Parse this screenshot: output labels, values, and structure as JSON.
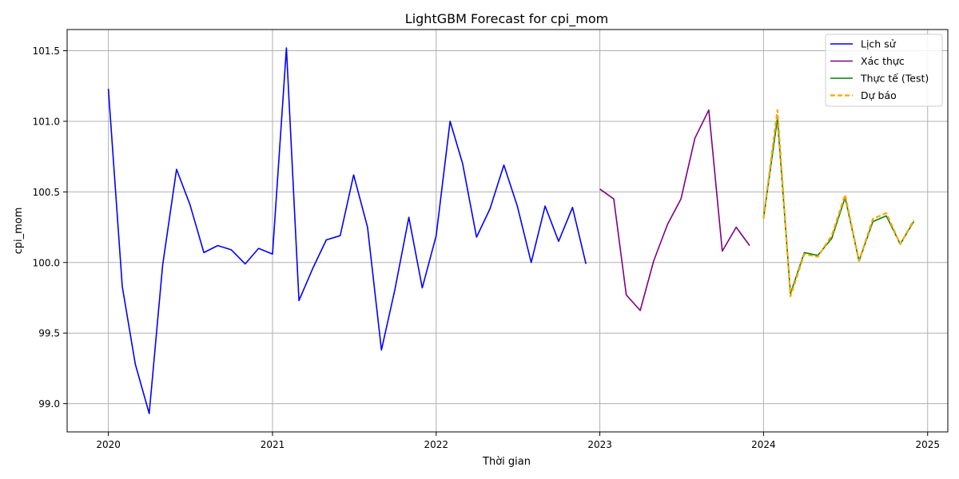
{
  "chart_data": {
    "type": "line",
    "title": "LightGBM Forecast for cpi_mom",
    "xlabel": "Thời gian",
    "ylabel": "cpi_mom",
    "xlim": [
      "2019-10-01",
      "2025-02-15"
    ],
    "ylim": [
      98.8,
      101.65
    ],
    "x_ticks": [
      "2020",
      "2021",
      "2022",
      "2023",
      "2024",
      "2025"
    ],
    "y_ticks": [
      "99.0",
      "99.5",
      "100.0",
      "100.5",
      "101.0",
      "101.5"
    ],
    "grid": true,
    "legend_position": "top-right",
    "series": [
      {
        "name": "Lịch sử",
        "color": "#0000ff",
        "style": "solid",
        "x": [
          "2020-01",
          "2020-02",
          "2020-03",
          "2020-04",
          "2020-05",
          "2020-06",
          "2020-07",
          "2020-08",
          "2020-09",
          "2020-10",
          "2020-11",
          "2020-12",
          "2021-01",
          "2021-02",
          "2021-03",
          "2021-04",
          "2021-05",
          "2021-06",
          "2021-07",
          "2021-08",
          "2021-09",
          "2021-10",
          "2021-11",
          "2021-12",
          "2022-01",
          "2022-02",
          "2022-03",
          "2022-04",
          "2022-05",
          "2022-06",
          "2022-07",
          "2022-08",
          "2022-09",
          "2022-10",
          "2022-11",
          "2022-12"
        ],
        "values": [
          101.23,
          99.83,
          99.28,
          98.93,
          99.98,
          100.66,
          100.41,
          100.07,
          100.12,
          100.09,
          99.99,
          100.1,
          100.06,
          101.52,
          99.73,
          99.96,
          100.16,
          100.19,
          100.62,
          100.25,
          99.38,
          99.81,
          100.32,
          99.82,
          100.19,
          101.0,
          100.7,
          100.18,
          100.38,
          100.69,
          100.4,
          100.0,
          100.4,
          100.15,
          100.39,
          99.99
        ]
      },
      {
        "name": "Xác thực",
        "color": "#800080",
        "style": "solid",
        "x": [
          "2023-01",
          "2023-02",
          "2023-03",
          "2023-04",
          "2023-05",
          "2023-06",
          "2023-07",
          "2023-08",
          "2023-09",
          "2023-10",
          "2023-11",
          "2023-12"
        ],
        "values": [
          100.52,
          100.45,
          99.77,
          99.66,
          100.01,
          100.27,
          100.45,
          100.88,
          101.08,
          100.08,
          100.25,
          100.12
        ]
      },
      {
        "name": "Thực tế (Test)",
        "color": "#008000",
        "style": "solid",
        "x": [
          "2024-01",
          "2024-02",
          "2024-03",
          "2024-04",
          "2024-05",
          "2024-06",
          "2024-07",
          "2024-08",
          "2024-09",
          "2024-10",
          "2024-11",
          "2024-12"
        ],
        "values": [
          100.31,
          101.02,
          99.78,
          100.07,
          100.05,
          100.17,
          100.46,
          100.01,
          100.29,
          100.33,
          100.13,
          100.29
        ]
      },
      {
        "name": "Dự báo",
        "color": "#ffa500",
        "style": "dashed",
        "x": [
          "2024-01",
          "2024-02",
          "2024-03",
          "2024-04",
          "2024-05",
          "2024-06",
          "2024-07",
          "2024-08",
          "2024-09",
          "2024-10",
          "2024-11",
          "2024-12"
        ],
        "values": [
          100.31,
          101.08,
          99.76,
          100.06,
          100.04,
          100.19,
          100.48,
          100.01,
          100.31,
          100.35,
          100.13,
          100.3
        ]
      }
    ]
  }
}
